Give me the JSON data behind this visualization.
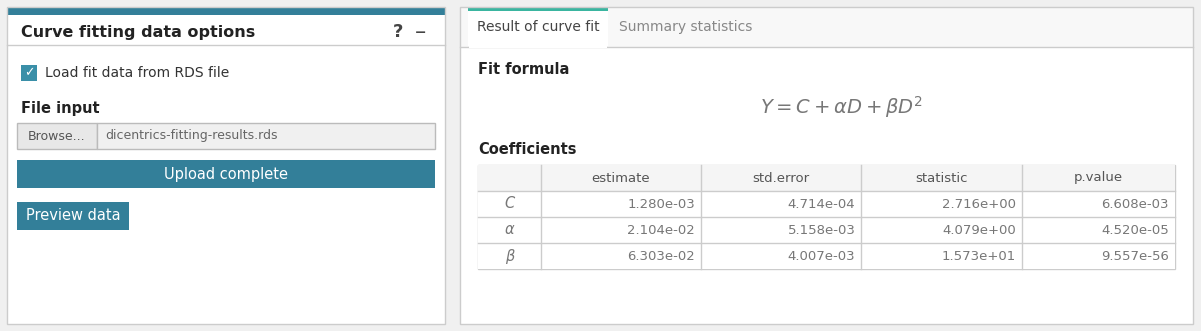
{
  "bg_color": "#f0f0f0",
  "left_panel": {
    "border_color": "#cccccc",
    "header_bar_color": "#337f99",
    "title": "Curve fitting data options",
    "title_fontsize": 11.5,
    "title_color": "#222222",
    "help_icon": "?",
    "minus_icon": "–",
    "icon_color": "#444444",
    "checkbox_color": "#3a8fa8",
    "checkbox_label": "Load fit data from RDS file",
    "checkbox_fontsize": 10,
    "file_input_label": "File input",
    "file_input_label_fontsize": 10.5,
    "browse_label": "Browse...",
    "file_name": "dicentrics-fitting-results.rds",
    "file_input_bg": "#f0f0f0",
    "browse_bg": "#e8e8e8",
    "browse_border": "#bbbbbb",
    "upload_btn_label": "Upload complete",
    "upload_btn_color": "#337f99",
    "upload_btn_text_color": "#ffffff",
    "upload_btn_fontsize": 10.5,
    "preview_btn_label": "Preview data",
    "preview_btn_color": "#337f99",
    "preview_btn_text_color": "#ffffff",
    "preview_btn_fontsize": 10.5
  },
  "right_panel": {
    "border_color": "#cccccc",
    "tab_active": "Result of curve fit",
    "tab_inactive": "Summary statistics",
    "tab_active_underline_color": "#3ab5a0",
    "tab_text_active_color": "#444444",
    "tab_text_inactive_color": "#888888",
    "tab_fontsize": 10,
    "fit_formula_label": "Fit formula",
    "fit_formula_fontsize": 10.5,
    "formula_text": "$Y = C + \\alpha D + \\beta D^2$",
    "formula_fontsize": 14,
    "formula_color": "#777777",
    "coefficients_label": "Coefficients",
    "coefficients_fontsize": 10.5,
    "table_header": [
      "",
      "estimate",
      "std.error",
      "statistic",
      "p.value"
    ],
    "table_rows": [
      [
        "C",
        "1.280e-03",
        "4.714e-04",
        "2.716e+00",
        "6.608e-03"
      ],
      [
        "α",
        "2.104e-02",
        "5.158e-03",
        "4.079e+00",
        "4.520e-05"
      ],
      [
        "β",
        "6.303e-02",
        "4.007e-03",
        "1.573e+01",
        "9.557e-56"
      ]
    ],
    "table_border_color": "#cccccc",
    "table_header_bg": "#f5f5f5",
    "table_row_bg": "#ffffff",
    "table_row_label_color": "#777777",
    "table_data_color": "#777777",
    "table_fontsize": 9.5
  }
}
